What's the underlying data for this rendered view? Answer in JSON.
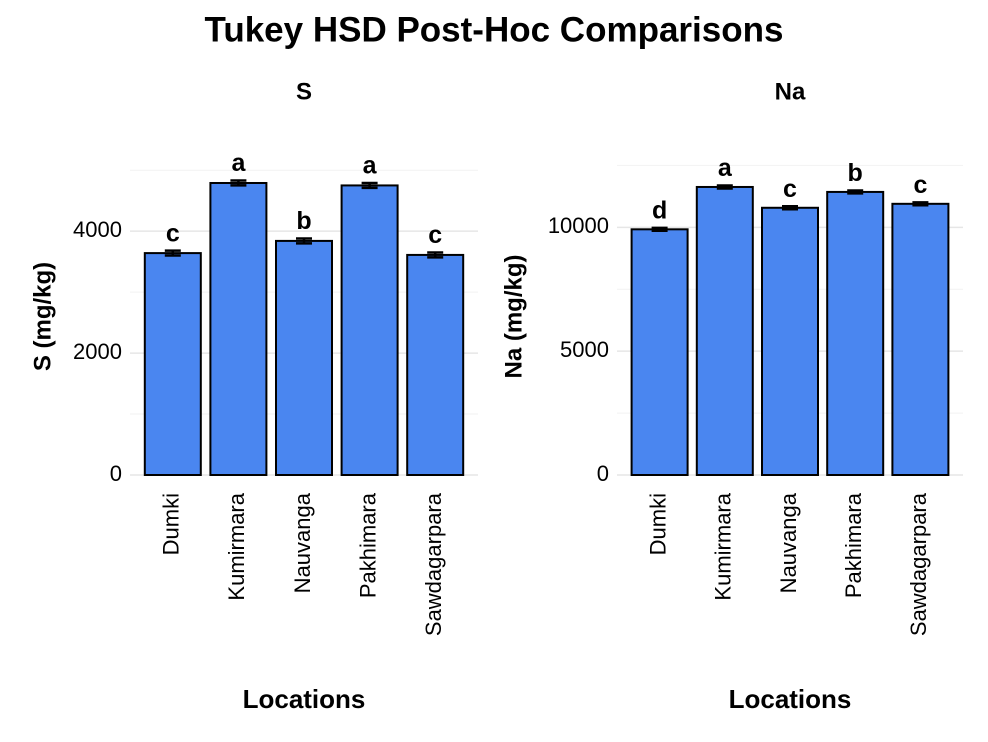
{
  "title": "Tukey HSD Post-Hoc Comparisons",
  "chart_data": [
    {
      "type": "bar",
      "title": "S",
      "xlabel": "Locations",
      "ylabel": "S (mg/kg)",
      "categories": [
        "Dumki",
        "Kumirmara",
        "Nauvanga",
        "Pakhimara",
        "Sawdagarpara"
      ],
      "values": [
        3640,
        4790,
        3840,
        4750,
        3610
      ],
      "errors": [
        40,
        40,
        40,
        40,
        40
      ],
      "letters": [
        "c",
        "a",
        "b",
        "a",
        "c"
      ],
      "color": "#4a86f0",
      "ylim": [
        0,
        5200
      ],
      "yticks": [
        0,
        2000,
        4000
      ],
      "minor_yticks": [
        1000,
        3000,
        5000
      ],
      "grid": true
    },
    {
      "type": "bar",
      "title": "Na",
      "xlabel": "Locations",
      "ylabel": "Na (mg/kg)",
      "categories": [
        "Dumki",
        "Kumirmara",
        "Nauvanga",
        "Pakhimara",
        "Sawdagarpara"
      ],
      "values": [
        9920,
        11630,
        10790,
        11430,
        10950
      ],
      "errors": [
        60,
        60,
        60,
        60,
        60
      ],
      "letters": [
        "d",
        "a",
        "c",
        "b",
        "c"
      ],
      "color": "#4a86f0",
      "ylim": [
        0,
        12800
      ],
      "yticks": [
        0,
        5000,
        10000
      ],
      "minor_yticks": [
        2500,
        7500,
        12500
      ],
      "grid": true
    }
  ]
}
